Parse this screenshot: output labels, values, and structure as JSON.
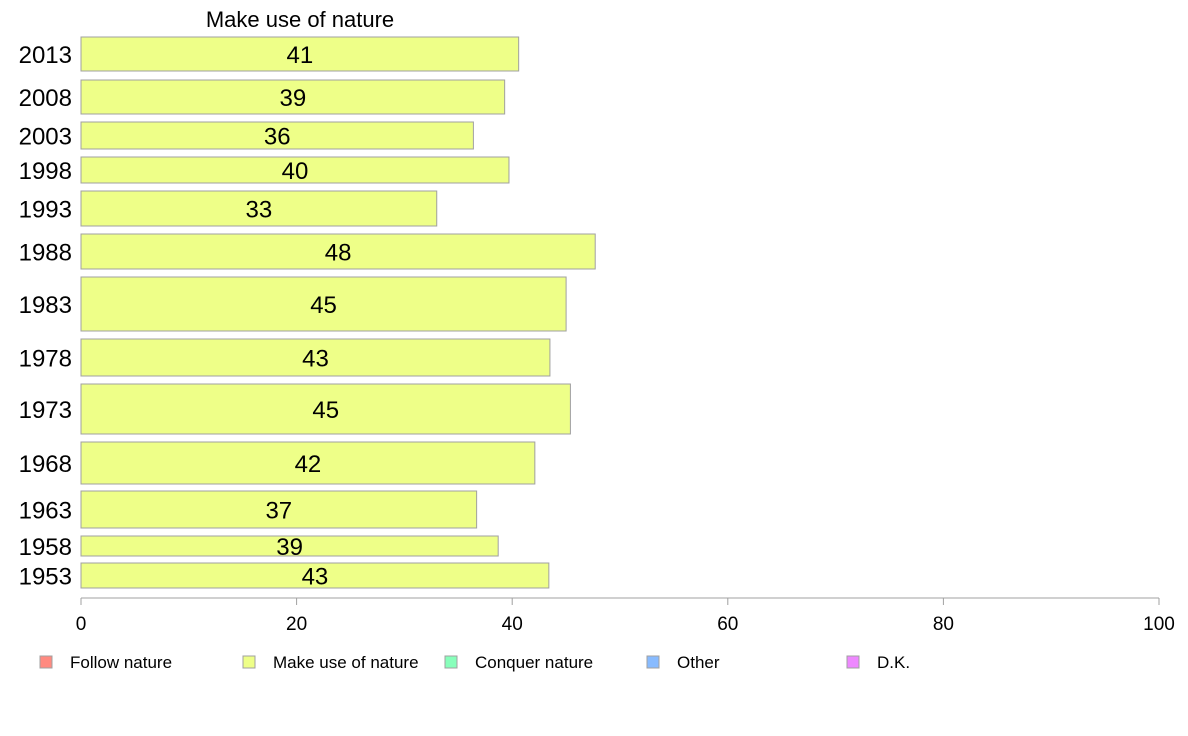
{
  "chart_data": {
    "type": "bar",
    "orientation": "horizontal",
    "title": "Make use of nature",
    "categories": [
      "2013",
      "2008",
      "2003",
      "1998",
      "1993",
      "1988",
      "1983",
      "1978",
      "1973",
      "1968",
      "1963",
      "1958",
      "1953"
    ],
    "values": [
      41,
      39,
      36,
      40,
      33,
      48,
      45,
      43,
      45,
      42,
      37,
      39,
      43
    ],
    "bar_lengths": [
      40.6,
      39.3,
      36.4,
      39.7,
      33.0,
      47.7,
      45.0,
      43.5,
      45.4,
      42.1,
      36.7,
      38.7,
      43.4
    ],
    "xlim": [
      0,
      100
    ],
    "xticks": [
      0,
      20,
      40,
      60,
      80,
      100
    ],
    "grid": false,
    "legend": {
      "position": "bottom",
      "items": [
        {
          "label": "Follow nature",
          "color": "#ff8a80"
        },
        {
          "label": "Make use of nature",
          "color": "#eeff88"
        },
        {
          "label": "Conquer nature",
          "color": "#88ffbb"
        },
        {
          "label": "Other",
          "color": "#88bbff"
        },
        {
          "label": "D.K.",
          "color": "#ee88ff"
        }
      ]
    },
    "bar_color": "#eeff88",
    "bar_stroke": "#a0a0a0"
  }
}
